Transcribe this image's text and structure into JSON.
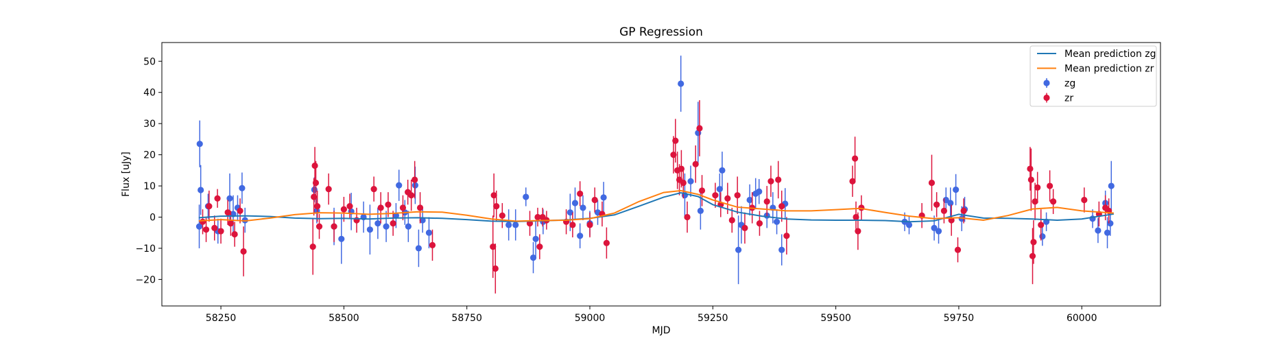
{
  "chart_data": {
    "type": "scatter",
    "title": "GP Regression",
    "xlabel": "MJD",
    "ylabel": "Flux [uJy]",
    "xlim": [
      58130,
      60160
    ],
    "ylim": [
      -28.5,
      56
    ],
    "xticks": [
      58250,
      58500,
      58750,
      59000,
      59250,
      59500,
      59750,
      60000
    ],
    "yticks": [
      -20,
      -10,
      0,
      10,
      20,
      30,
      40,
      50
    ],
    "legend_position": "top-right",
    "colors": {
      "zg_mean": "#1f77b4",
      "zr_mean": "#ff7f0e",
      "zg_points": "#4169e1",
      "zr_points": "#dc143c"
    },
    "lines": [
      {
        "name": "Mean prediction zg",
        "x": [
          58205,
          58250,
          58300,
          58350,
          58400,
          58450,
          58500,
          58550,
          58600,
          58650,
          58700,
          58750,
          58800,
          58850,
          58900,
          58950,
          59000,
          59050,
          59100,
          59150,
          59185,
          59220,
          59250,
          59300,
          59350,
          59400,
          59450,
          59500,
          59550,
          59600,
          59650,
          59700,
          59750,
          59800,
          59850,
          59900,
          59950,
          60000,
          60065
        ],
        "y": [
          -0.2,
          0.3,
          0.4,
          0.2,
          -0.3,
          -0.5,
          -0.4,
          -0.6,
          -0.3,
          -0.2,
          -0.4,
          -0.8,
          -1.3,
          -1.4,
          -1.2,
          -0.9,
          -0.4,
          0.7,
          3.5,
          6.4,
          7.8,
          6.6,
          4.0,
          1.6,
          0.3,
          -0.6,
          -0.9,
          -1.0,
          -1.0,
          -1.1,
          -1.5,
          -1.2,
          0.9,
          -0.3,
          -0.4,
          -0.6,
          -1.0,
          -0.6,
          1.0
        ]
      },
      {
        "name": "Mean prediction zr",
        "x": [
          58205,
          58250,
          58300,
          58350,
          58400,
          58450,
          58500,
          58550,
          58600,
          58650,
          58700,
          58750,
          58800,
          58850,
          58900,
          58950,
          59000,
          59050,
          59100,
          59150,
          59185,
          59220,
          59250,
          59300,
          59350,
          59400,
          59450,
          59500,
          59550,
          59600,
          59650,
          59700,
          59750,
          59800,
          59850,
          59900,
          59950,
          60000,
          60065
        ],
        "y": [
          -1.2,
          -0.8,
          -1.2,
          -0.3,
          0.8,
          1.4,
          1.3,
          0.9,
          1.2,
          1.7,
          1.6,
          0.6,
          -0.6,
          -1.3,
          -1.1,
          -1.0,
          -0.5,
          1.3,
          5.0,
          7.9,
          8.5,
          7.3,
          5.5,
          3.2,
          2.6,
          2.0,
          2.0,
          2.4,
          2.8,
          1.5,
          0.3,
          -0.5,
          -0.2,
          -1.0,
          0.5,
          2.6,
          3.1,
          2.0,
          1.3
        ]
      }
    ],
    "series": [
      {
        "name": "zg",
        "points": [
          [
            58207,
            23.5,
            7.5
          ],
          [
            58209,
            8.7,
            8
          ],
          [
            58206,
            -3,
            7
          ],
          [
            58224,
            3.5,
            4
          ],
          [
            58244,
            -4.5,
            4
          ],
          [
            58268,
            6,
            8
          ],
          [
            58275,
            1,
            6
          ],
          [
            58284,
            3,
            4
          ],
          [
            58293,
            9.3,
            5
          ],
          [
            58299,
            -1,
            4
          ],
          [
            58440,
            8.8,
            4
          ],
          [
            58445,
            2,
            4
          ],
          [
            58480,
            -3,
            6
          ],
          [
            58495,
            -7,
            8
          ],
          [
            58515,
            1.8,
            6
          ],
          [
            58540,
            0,
            5
          ],
          [
            58553,
            -4,
            8
          ],
          [
            58569,
            -2,
            5
          ],
          [
            58586,
            -3,
            5
          ],
          [
            58606,
            0.5,
            4
          ],
          [
            58612,
            10.2,
            5
          ],
          [
            58624,
            1.5,
            4
          ],
          [
            58631,
            -3,
            5
          ],
          [
            58645,
            10.2,
            6
          ],
          [
            58652,
            -10,
            6
          ],
          [
            58660,
            -1,
            4
          ],
          [
            58673,
            -5,
            5
          ],
          [
            58835,
            -2.5,
            5
          ],
          [
            58849,
            -2.5,
            5
          ],
          [
            58870,
            6.5,
            3
          ],
          [
            58885,
            -13,
            5
          ],
          [
            58890,
            -7,
            6
          ],
          [
            58905,
            -1.5,
            4
          ],
          [
            58960,
            1.5,
            6
          ],
          [
            58970,
            4.5,
            5
          ],
          [
            58980,
            -6,
            4
          ],
          [
            58986,
            3,
            4
          ],
          [
            59000,
            -2,
            4
          ],
          [
            59016,
            1.5,
            4
          ],
          [
            59028,
            6.3,
            5
          ],
          [
            59185,
            42.8,
            9
          ],
          [
            59193,
            7,
            7
          ],
          [
            59205,
            11.5,
            5
          ],
          [
            59220,
            27,
            10
          ],
          [
            59225,
            2,
            6
          ],
          [
            59264,
            9,
            5
          ],
          [
            59269,
            15,
            6
          ],
          [
            59302,
            -10.5,
            11
          ],
          [
            59308,
            -2.5,
            6
          ],
          [
            59325,
            5.5,
            5
          ],
          [
            59337,
            7.5,
            5
          ],
          [
            59344,
            8.2,
            4
          ],
          [
            59360,
            0.5,
            4
          ],
          [
            59372,
            3,
            5
          ],
          [
            59380,
            -1.5,
            4
          ],
          [
            59390,
            -10.5,
            5
          ],
          [
            59397,
            4.3,
            5
          ],
          [
            59640,
            -1.5,
            3
          ],
          [
            59649,
            -2.5,
            3
          ],
          [
            59700,
            -3.5,
            4
          ],
          [
            59709,
            -4.5,
            4
          ],
          [
            59724,
            5.5,
            4
          ],
          [
            59733,
            4.5,
            5
          ],
          [
            59744,
            8.8,
            5
          ],
          [
            59756,
            -0.5,
            4
          ],
          [
            59762,
            2.5,
            4
          ],
          [
            59920,
            -6.2,
            3
          ],
          [
            59928,
            -1.5,
            3
          ],
          [
            60022,
            -0.5,
            3
          ],
          [
            60033,
            -4.3,
            4
          ],
          [
            60048,
            4.5,
            4
          ],
          [
            60052,
            -5,
            5
          ],
          [
            60060,
            10,
            8
          ],
          [
            60058,
            -2,
            4
          ]
        ]
      },
      {
        "name": "zr",
        "points": [
          [
            58213,
            -1.5,
            4
          ],
          [
            58220,
            -4,
            4
          ],
          [
            58226,
            3.5,
            5
          ],
          [
            58237,
            -3.5,
            4
          ],
          [
            58243,
            6,
            3
          ],
          [
            58250,
            -4.5,
            4
          ],
          [
            58264,
            1.5,
            4
          ],
          [
            58270,
            -2,
            4
          ],
          [
            58278,
            -5.5,
            4
          ],
          [
            58289,
            2,
            4
          ],
          [
            58296,
            -11,
            8
          ],
          [
            58437,
            -9.5,
            9
          ],
          [
            58439,
            6.5,
            6
          ],
          [
            58441,
            16.5,
            6
          ],
          [
            58443,
            11,
            7
          ],
          [
            58446,
            3.5,
            5
          ],
          [
            58450,
            -3,
            4
          ],
          [
            58469,
            9,
            5
          ],
          [
            58480,
            -3,
            5
          ],
          [
            58500,
            2.5,
            4
          ],
          [
            58512,
            3.5,
            4
          ],
          [
            58526,
            -1,
            4
          ],
          [
            58561,
            9,
            4
          ],
          [
            58575,
            3,
            5
          ],
          [
            58590,
            4,
            4
          ],
          [
            58600,
            -2,
            4
          ],
          [
            58620,
            3,
            4
          ],
          [
            58630,
            8,
            4
          ],
          [
            58637,
            7,
            5
          ],
          [
            58644,
            12,
            6
          ],
          [
            58655,
            3,
            5
          ],
          [
            58680,
            -9,
            5
          ],
          [
            58803,
            -9.5,
            10
          ],
          [
            58805,
            7,
            7
          ],
          [
            58808,
            -16.5,
            8
          ],
          [
            58810,
            3.5,
            5
          ],
          [
            58822,
            0.5,
            4
          ],
          [
            58878,
            -2,
            4
          ],
          [
            58894,
            0,
            3
          ],
          [
            58898,
            -9.5,
            4
          ],
          [
            58904,
            0,
            3
          ],
          [
            58912,
            -1,
            3
          ],
          [
            58952,
            -1.5,
            4
          ],
          [
            58965,
            -2.5,
            4
          ],
          [
            58980,
            7.5,
            4
          ],
          [
            59000,
            -2.5,
            4
          ],
          [
            59010,
            5.5,
            4
          ],
          [
            59025,
            1,
            4
          ],
          [
            59034,
            -8.3,
            5
          ],
          [
            59170,
            20,
            6
          ],
          [
            59174,
            24.5,
            7
          ],
          [
            59178,
            15,
            6
          ],
          [
            59182,
            12,
            5
          ],
          [
            59186,
            15.5,
            6
          ],
          [
            59190,
            11,
            5
          ],
          [
            59198,
            0,
            5
          ],
          [
            59215,
            17,
            6
          ],
          [
            59223,
            28.5,
            9
          ],
          [
            59228,
            8.5,
            5
          ],
          [
            59255,
            7,
            4
          ],
          [
            59266,
            4,
            4
          ],
          [
            59280,
            6,
            5
          ],
          [
            59289,
            -1,
            4
          ],
          [
            59300,
            7,
            6
          ],
          [
            59315,
            -3.5,
            5
          ],
          [
            59330,
            3,
            5
          ],
          [
            59345,
            -2,
            4
          ],
          [
            59360,
            5,
            5
          ],
          [
            59368,
            11.5,
            5
          ],
          [
            59383,
            12,
            6
          ],
          [
            59390,
            3.5,
            5
          ],
          [
            59400,
            -6,
            6
          ],
          [
            59534,
            11.5,
            5
          ],
          [
            59539,
            18.8,
            7
          ],
          [
            59541,
            0,
            5
          ],
          [
            59545,
            -4.5,
            6
          ],
          [
            59552,
            3,
            4
          ],
          [
            59675,
            0.5,
            4
          ],
          [
            59695,
            11,
            9
          ],
          [
            59705,
            4,
            4
          ],
          [
            59720,
            2,
            4
          ],
          [
            59735,
            -1,
            5
          ],
          [
            59748,
            -10.5,
            4
          ],
          [
            59760,
            2,
            4
          ],
          [
            59895,
            15.5,
            7
          ],
          [
            59897,
            12,
            10
          ],
          [
            59900,
            -12.5,
            9
          ],
          [
            59902,
            -8,
            7
          ],
          [
            59905,
            5,
            6
          ],
          [
            59910,
            9.5,
            5
          ],
          [
            59917,
            -2.5,
            5
          ],
          [
            59935,
            10,
            5
          ],
          [
            59942,
            5,
            4
          ],
          [
            60005,
            5.5,
            4
          ],
          [
            60035,
            1,
            4
          ],
          [
            60048,
            3,
            4
          ],
          [
            60055,
            2,
            4
          ]
        ]
      }
    ]
  }
}
